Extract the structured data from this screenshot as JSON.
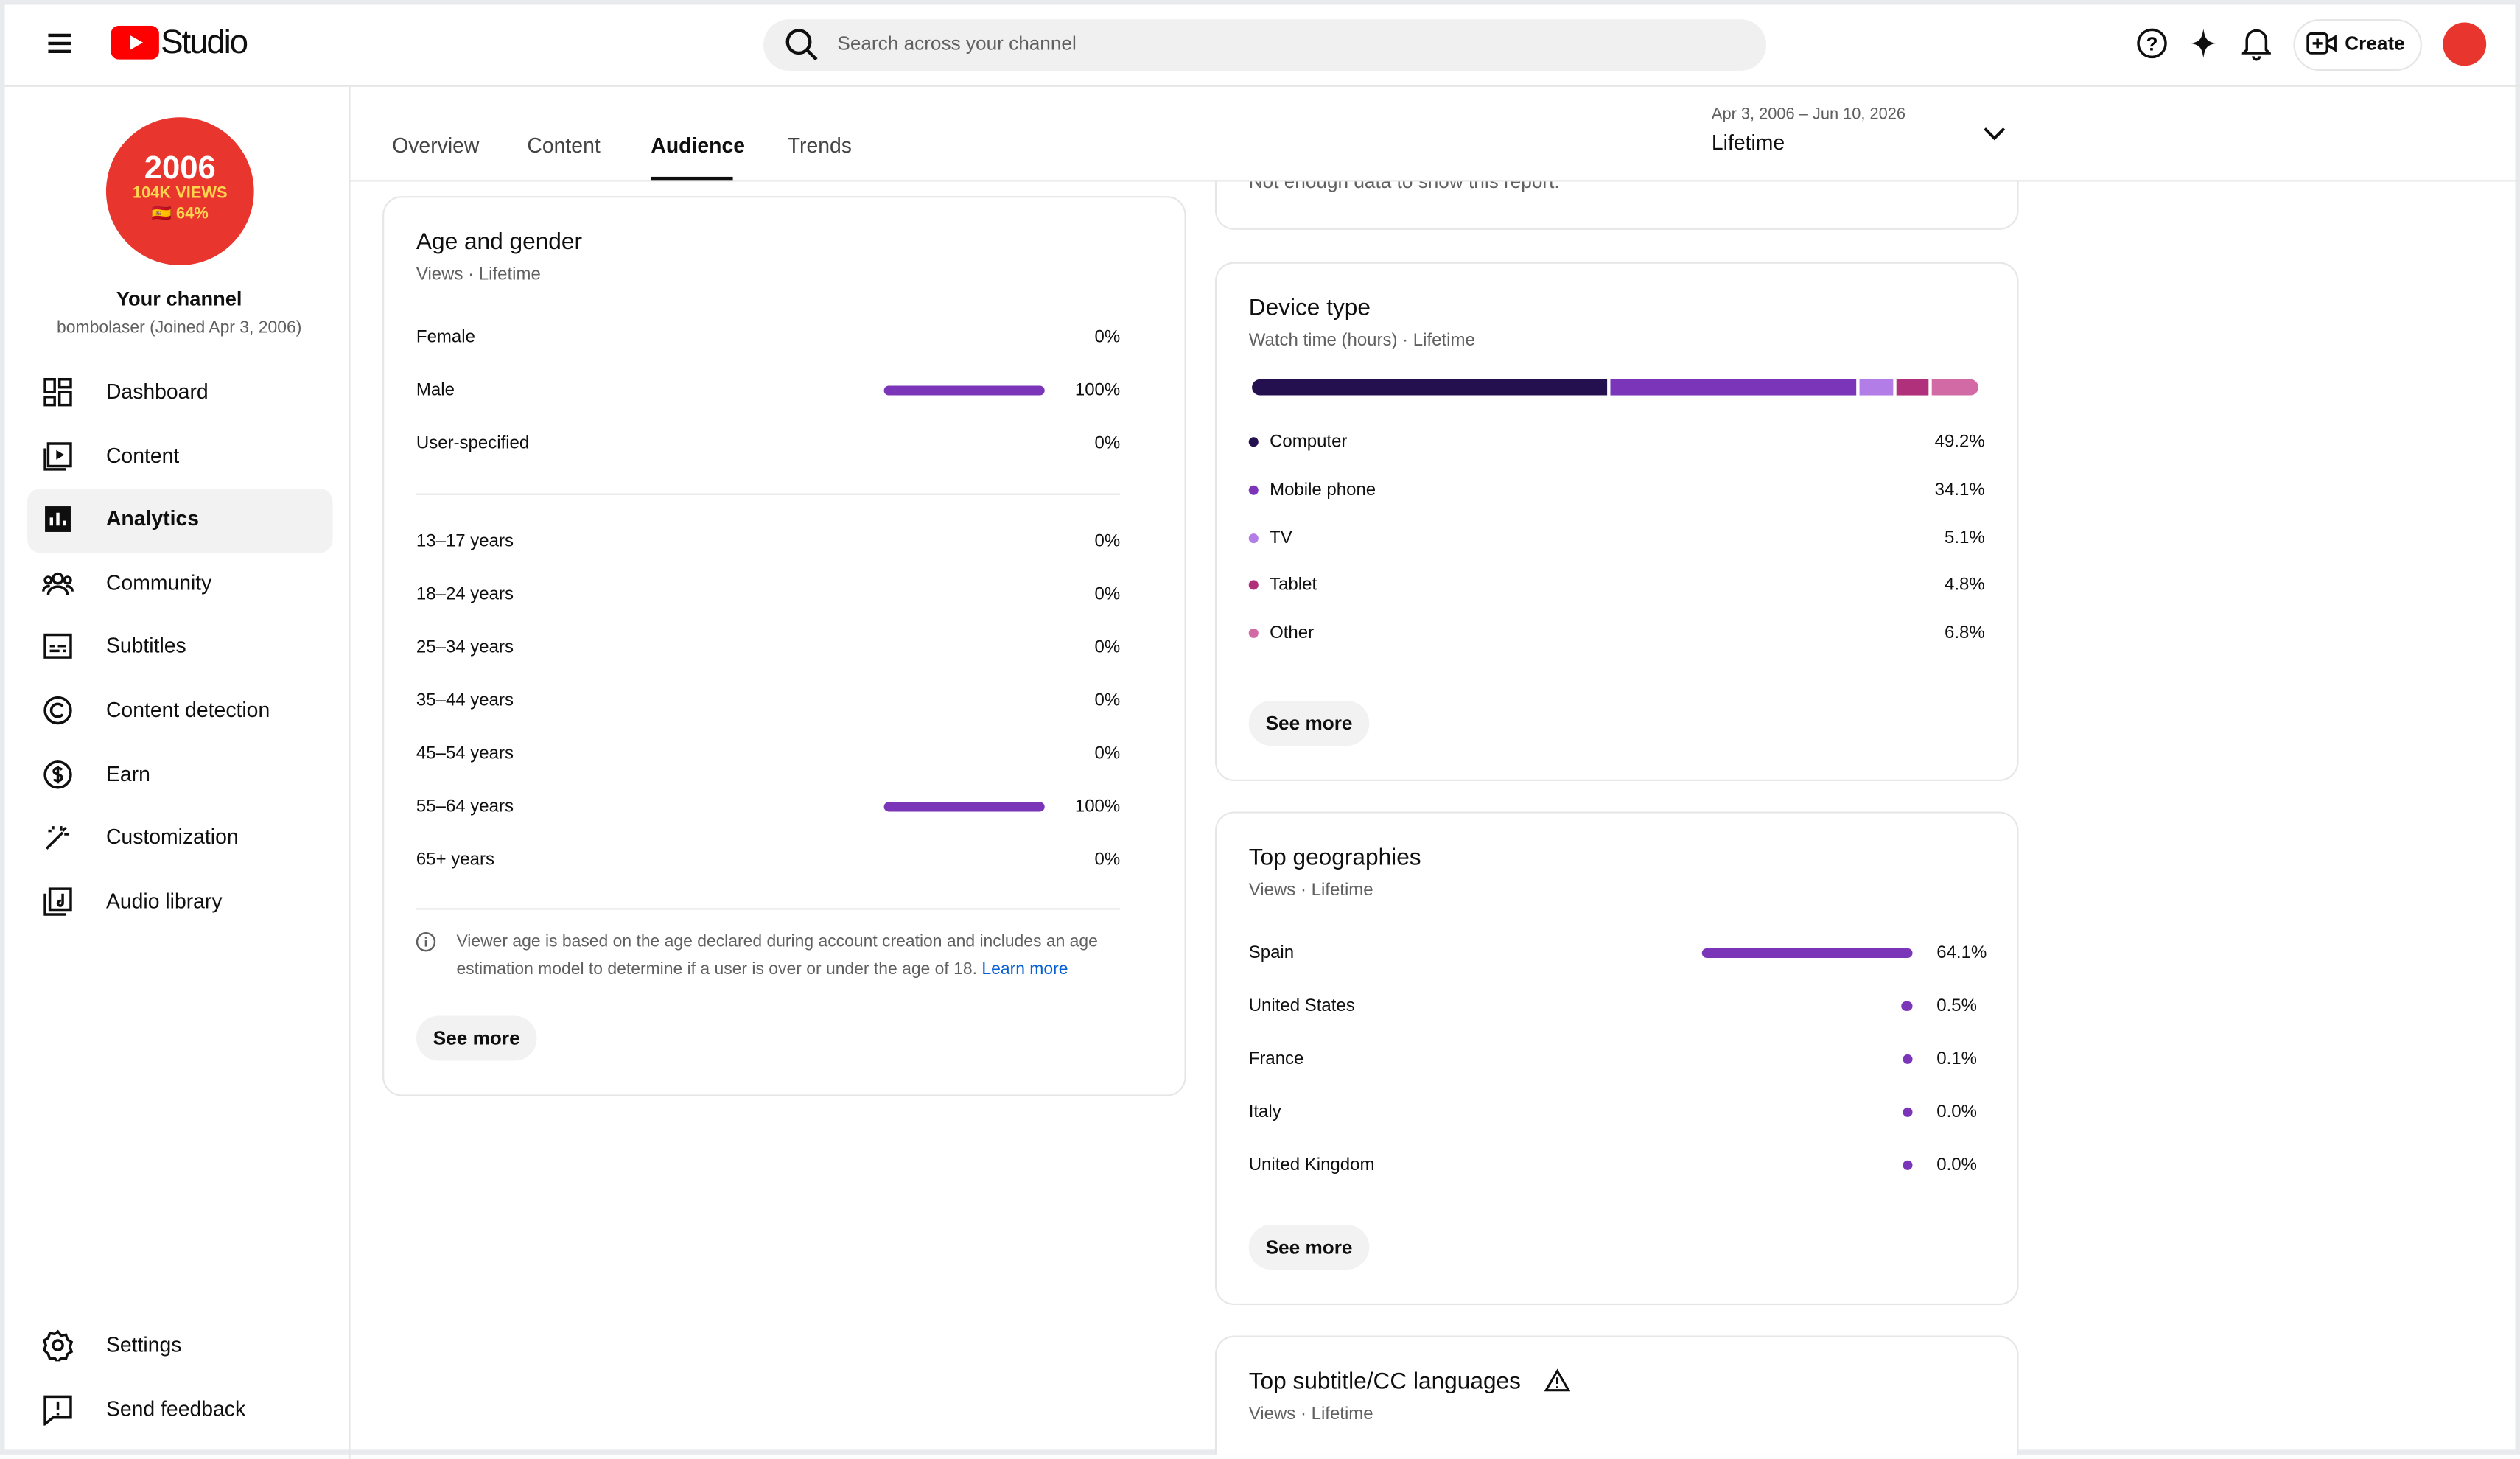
{
  "header": {
    "logo": "Studio",
    "search_placeholder": "Search across your channel",
    "create": "Create"
  },
  "sidebar": {
    "avatar": [
      "2006",
      "104K VIEWS",
      "🇪🇸 64%"
    ],
    "channel_title": "Your channel",
    "channel_handle": "bombolaser (Joined Apr 3, 2006)",
    "nav": [
      "Dashboard",
      "Content",
      "Analytics",
      "Community",
      "Subtitles",
      "Content detection",
      "Earn",
      "Customization",
      "Audio library"
    ],
    "footer": [
      "Settings",
      "Send feedback"
    ]
  },
  "tabs": [
    "Overview",
    "Content",
    "Audience",
    "Trends"
  ],
  "date_range": {
    "dates": "Apr 3, 2006 – Jun 10, 2026",
    "label": "Lifetime"
  },
  "previous_card": {
    "message": "Not enough data to show this report."
  },
  "age_gender": {
    "title": "Age and gender",
    "subtitle": "Views · Lifetime",
    "gender": [
      {
        "label": "Female",
        "value": 0,
        "value_label": "0%"
      },
      {
        "label": "Male",
        "value": 100,
        "value_label": "100%"
      },
      {
        "label": "User-specified",
        "value": 0,
        "value_label": "0%"
      }
    ],
    "age": [
      {
        "label": "13–17 years",
        "value": 0,
        "value_label": "0%"
      },
      {
        "label": "18–24 years",
        "value": 0,
        "value_label": "0%"
      },
      {
        "label": "25–34 years",
        "value": 0,
        "value_label": "0%"
      },
      {
        "label": "35–44 years",
        "value": 0,
        "value_label": "0%"
      },
      {
        "label": "45–54 years",
        "value": 0,
        "value_label": "0%"
      },
      {
        "label": "55–64 years",
        "value": 100,
        "value_label": "100%"
      },
      {
        "label": "65+ years",
        "value": 0,
        "value_label": "0%"
      }
    ],
    "note": "Viewer age is based on the age declared during account creation and includes an age estimation model to determine if a user is over or under the age of 18.",
    "learn_more": "Learn more",
    "button": "See more"
  },
  "device_type": {
    "title": "Device type",
    "subtitle": "Watch time (hours) · Lifetime",
    "rows": [
      {
        "label": "Computer",
        "value": 49.2,
        "value_label": "49.2%",
        "color": "#24104f"
      },
      {
        "label": "Mobile phone",
        "value": 34.1,
        "value_label": "34.1%",
        "color": "#7b35b8"
      },
      {
        "label": "TV",
        "value": 5.1,
        "value_label": "5.1%",
        "color": "#b27de6"
      },
      {
        "label": "Tablet",
        "value": 4.8,
        "value_label": "4.8%",
        "color": "#b0307c"
      },
      {
        "label": "Other",
        "value": 6.8,
        "value_label": "6.8%",
        "color": "#d26aa6"
      }
    ],
    "button": "See more"
  },
  "top_geographies": {
    "title": "Top geographies",
    "subtitle": "Views · Lifetime",
    "rows": [
      {
        "label": "Spain",
        "value": 64.1,
        "value_label": "64.1%"
      },
      {
        "label": "United States",
        "value": 0.5,
        "value_label": "0.5%"
      },
      {
        "label": "France",
        "value": 0.1,
        "value_label": "0.1%"
      },
      {
        "label": "Italy",
        "value": 0.0,
        "value_label": "0.0%"
      },
      {
        "label": "United Kingdom",
        "value": 0.0,
        "value_label": "0.0%"
      }
    ],
    "button": "See more"
  },
  "subtitle_languages": {
    "title": "Top subtitle/CC languages",
    "subtitle": "Views · Lifetime"
  }
}
